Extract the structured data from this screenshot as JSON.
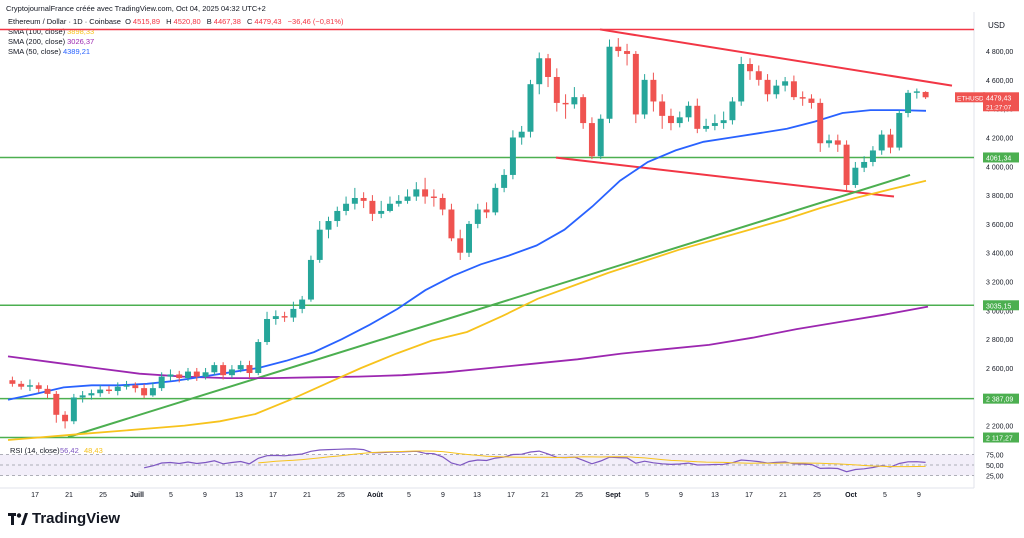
{
  "credit": "CryptojournalFrance créée avec TradingView.com, Oct 04, 2025 04:32 UTC+2",
  "header": {
    "symbol": "Ethereum / Dollar · 1D · Coinbase",
    "ohlc": [
      {
        "label": "O",
        "value": "4515,89"
      },
      {
        "label": "H",
        "value": "4520,80"
      },
      {
        "label": "B",
        "value": "4467,38"
      },
      {
        "label": "C",
        "value": "4479,43"
      }
    ],
    "change": "−36,46 (−0,81%)"
  },
  "indicators": [
    {
      "label": "SMA (100, close)",
      "value": "3898,33",
      "color": "#f7c31d"
    },
    {
      "label": "SMA (200, close)",
      "value": "3026,37",
      "color": "#9c27b0"
    },
    {
      "label": "SMA (50, close)",
      "value": "4389,21",
      "color": "#2962ff"
    }
  ],
  "currency": "USD",
  "price_axis": [
    "4 800,00",
    "4 600,00",
    "4 400,00",
    "4 200,00",
    "4 000,00",
    "3 800,00",
    "3 600,00",
    "3 400,00",
    "3 200,00",
    "3 000,00",
    "2 800,00",
    "2 600,00",
    "2 400,00",
    "2 200,00"
  ],
  "price_tags": {
    "symbol": "ETHUSD",
    "price": "4479,43",
    "countdown": "21:27:07",
    "levels": [
      "4061,34",
      "3035,15",
      "2 387,09",
      "2 117,27"
    ]
  },
  "rsi": {
    "label": "RSI (14, close)",
    "value": "56,42",
    "ma_value": "48,43",
    "axis": [
      "75,00",
      "50,00",
      "25,00"
    ]
  },
  "time_axis": [
    "17",
    "21",
    "25",
    "Juill",
    "5",
    "9",
    "13",
    "17",
    "21",
    "25",
    "Août",
    "5",
    "9",
    "13",
    "17",
    "21",
    "25",
    "Sept",
    "5",
    "9",
    "13",
    "17",
    "21",
    "25",
    "Oct",
    "5",
    "9"
  ],
  "footer": {
    "brand": "TradingView"
  },
  "colors": {
    "up": "#26a69a",
    "down": "#ef5350",
    "sma50": "#2962ff",
    "sma100": "#f7c31d",
    "sma200": "#9c27b0",
    "support": "#4caf50",
    "resistance": "#f23645"
  },
  "chart_data": {
    "type": "candlestick",
    "symbol": "ETHUSD",
    "timeframe": "1D",
    "x_axis_ticks": [
      "17",
      "21",
      "25",
      "Juill",
      "5",
      "9",
      "13",
      "17",
      "21",
      "25",
      "Août",
      "5",
      "9",
      "13",
      "17",
      "21",
      "25",
      "Sept",
      "5",
      "9",
      "13",
      "17",
      "21",
      "25",
      "Oct",
      "5",
      "9"
    ],
    "ylim": [
      2100,
      4960
    ],
    "candles": [
      [
        2515,
        2490,
        2540,
        2470
      ],
      [
        2490,
        2470,
        2510,
        2450
      ],
      [
        2470,
        2480,
        2520,
        2440
      ],
      [
        2480,
        2455,
        2500,
        2430
      ],
      [
        2455,
        2420,
        2480,
        2390
      ],
      [
        2420,
        2275,
        2440,
        2220
      ],
      [
        2275,
        2230,
        2300,
        2180
      ],
      [
        2230,
        2395,
        2420,
        2210
      ],
      [
        2395,
        2410,
        2440,
        2360
      ],
      [
        2410,
        2425,
        2450,
        2380
      ],
      [
        2425,
        2450,
        2480,
        2400
      ],
      [
        2450,
        2440,
        2475,
        2420
      ],
      [
        2440,
        2470,
        2500,
        2410
      ],
      [
        2470,
        2480,
        2510,
        2450
      ],
      [
        2480,
        2460,
        2500,
        2430
      ],
      [
        2460,
        2410,
        2490,
        2390
      ],
      [
        2410,
        2460,
        2500,
        2400
      ],
      [
        2460,
        2540,
        2570,
        2440
      ],
      [
        2540,
        2555,
        2590,
        2510
      ],
      [
        2555,
        2530,
        2580,
        2500
      ],
      [
        2530,
        2575,
        2600,
        2510
      ],
      [
        2575,
        2540,
        2600,
        2510
      ],
      [
        2540,
        2570,
        2600,
        2520
      ],
      [
        2570,
        2620,
        2640,
        2550
      ],
      [
        2620,
        2550,
        2640,
        2520
      ],
      [
        2550,
        2590,
        2620,
        2530
      ],
      [
        2590,
        2620,
        2650,
        2570
      ],
      [
        2620,
        2565,
        2650,
        2530
      ],
      [
        2565,
        2780,
        2800,
        2550
      ],
      [
        2780,
        2940,
        2990,
        2760
      ],
      [
        2940,
        2960,
        3000,
        2900
      ],
      [
        2960,
        2950,
        2990,
        2920
      ],
      [
        2950,
        3010,
        3060,
        2920
      ],
      [
        3010,
        3075,
        3100,
        2980
      ],
      [
        3075,
        3350,
        3380,
        3060
      ],
      [
        3350,
        3560,
        3620,
        3330
      ],
      [
        3560,
        3620,
        3650,
        3500
      ],
      [
        3620,
        3690,
        3720,
        3580
      ],
      [
        3690,
        3740,
        3790,
        3660
      ],
      [
        3740,
        3780,
        3850,
        3700
      ],
      [
        3780,
        3760,
        3820,
        3710
      ],
      [
        3760,
        3670,
        3800,
        3620
      ],
      [
        3670,
        3690,
        3760,
        3640
      ],
      [
        3690,
        3740,
        3790,
        3680
      ],
      [
        3740,
        3760,
        3800,
        3720
      ],
      [
        3760,
        3790,
        3840,
        3740
      ],
      [
        3790,
        3840,
        3890,
        3760
      ],
      [
        3840,
        3790,
        3920,
        3740
      ],
      [
        3790,
        3780,
        3840,
        3720
      ],
      [
        3780,
        3700,
        3810,
        3660
      ],
      [
        3700,
        3500,
        3740,
        3480
      ],
      [
        3500,
        3400,
        3560,
        3350
      ],
      [
        3400,
        3600,
        3620,
        3370
      ],
      [
        3600,
        3700,
        3740,
        3570
      ],
      [
        3700,
        3680,
        3750,
        3640
      ],
      [
        3680,
        3850,
        3880,
        3660
      ],
      [
        3850,
        3940,
        3980,
        3820
      ],
      [
        3940,
        4200,
        4250,
        3910
      ],
      [
        4200,
        4240,
        4280,
        4150
      ],
      [
        4240,
        4570,
        4600,
        4200
      ],
      [
        4570,
        4750,
        4790,
        4500
      ],
      [
        4750,
        4620,
        4780,
        4550
      ],
      [
        4620,
        4440,
        4680,
        4380
      ],
      [
        4440,
        4430,
        4500,
        4330
      ],
      [
        4430,
        4480,
        4550,
        4400
      ],
      [
        4480,
        4300,
        4500,
        4260
      ],
      [
        4300,
        4070,
        4340,
        4050
      ],
      [
        4070,
        4330,
        4360,
        4050
      ],
      [
        4330,
        4830,
        4880,
        4300
      ],
      [
        4830,
        4800,
        4890,
        4760
      ],
      [
        4800,
        4780,
        4850,
        4700
      ],
      [
        4780,
        4360,
        4800,
        4300
      ],
      [
        4360,
        4600,
        4640,
        4330
      ],
      [
        4600,
        4450,
        4650,
        4380
      ],
      [
        4450,
        4350,
        4500,
        4260
      ],
      [
        4350,
        4300,
        4400,
        4250
      ],
      [
        4300,
        4340,
        4380,
        4270
      ],
      [
        4340,
        4420,
        4450,
        4310
      ],
      [
        4420,
        4260,
        4470,
        4230
      ],
      [
        4260,
        4280,
        4330,
        4240
      ],
      [
        4280,
        4300,
        4360,
        4250
      ],
      [
        4300,
        4320,
        4380,
        4260
      ],
      [
        4320,
        4450,
        4480,
        4290
      ],
      [
        4450,
        4710,
        4760,
        4420
      ],
      [
        4710,
        4660,
        4750,
        4600
      ],
      [
        4660,
        4600,
        4700,
        4560
      ],
      [
        4600,
        4500,
        4640,
        4450
      ],
      [
        4500,
        4560,
        4600,
        4470
      ],
      [
        4560,
        4590,
        4620,
        4520
      ],
      [
        4590,
        4480,
        4630,
        4460
      ],
      [
        4480,
        4470,
        4520,
        4420
      ],
      [
        4470,
        4440,
        4500,
        4400
      ],
      [
        4440,
        4160,
        4470,
        4100
      ],
      [
        4160,
        4180,
        4220,
        4130
      ],
      [
        4180,
        4150,
        4220,
        4100
      ],
      [
        4150,
        3870,
        4180,
        3830
      ],
      [
        3870,
        3990,
        4030,
        3850
      ],
      [
        3990,
        4030,
        4070,
        3960
      ],
      [
        4030,
        4110,
        4140,
        4000
      ],
      [
        4110,
        4220,
        4250,
        4080
      ],
      [
        4220,
        4130,
        4260,
        4090
      ],
      [
        4130,
        4370,
        4390,
        4110
      ],
      [
        4370,
        4510,
        4530,
        4340
      ],
      [
        4510,
        4520,
        4540,
        4470
      ],
      [
        4516,
        4479,
        4521,
        4467
      ]
    ],
    "sma50": [
      2380,
      2420,
      2465,
      2480,
      2480,
      2490,
      2510,
      2540,
      2570,
      2600,
      2650,
      2710,
      2800,
      2900,
      3010,
      3140,
      3240,
      3320,
      3380,
      3450,
      3560,
      3720,
      3900,
      4030,
      4110,
      4170,
      4200,
      4230,
      4260,
      4310,
      4370,
      4390,
      4390,
      4385
    ],
    "sma100": [
      2100,
      2120,
      2140,
      2160,
      2180,
      2200,
      2230,
      2280,
      2380,
      2490,
      2600,
      2700,
      2790,
      2850,
      2960,
      3080,
      3170,
      3260,
      3340,
      3420,
      3490,
      3560,
      3630,
      3710,
      3780,
      3840,
      3900
    ],
    "sma200": [
      2680,
      2640,
      2600,
      2560,
      2540,
      2530,
      2530,
      2535,
      2540,
      2550,
      2570,
      2600,
      2630,
      2660,
      2700,
      2730,
      2760,
      2810,
      2870,
      2920,
      2970,
      3026
    ],
    "trendlines": [
      {
        "type": "resistance",
        "from": [
          4950,
          "Aug 23"
        ],
        "to": [
          4560,
          "Oct 6"
        ]
      },
      {
        "type": "support-channel",
        "from": [
          4060,
          "Aug 19"
        ],
        "to": [
          3790,
          "Sept 29"
        ]
      },
      {
        "type": "rising-support",
        "from": [
          2120,
          "Jun 22"
        ],
        "to": [
          3940,
          "Oct 1"
        ]
      }
    ],
    "horizontal_levels": [
      4950,
      4061.34,
      3035.15,
      2387.09,
      2117.27
    ],
    "rsi": {
      "period": 14,
      "last": 56.42,
      "ma_last": 48.43,
      "overbought": 75,
      "oversold": 25
    }
  }
}
